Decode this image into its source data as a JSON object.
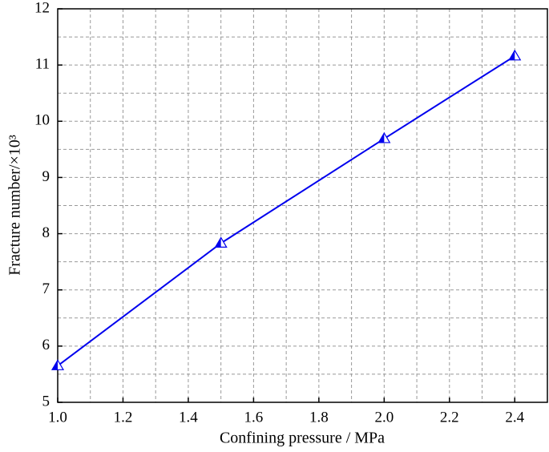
{
  "chart_data": {
    "type": "line",
    "x_label": "Confining pressure / MPa",
    "y_label": "Fracture number/×10³",
    "x": [
      1.0,
      1.5,
      2.0,
      2.4
    ],
    "series": [
      {
        "color": "#0000ee",
        "values": [
          5.65,
          7.83,
          9.69,
          11.16
        ]
      }
    ],
    "xlim": [
      1.0,
      2.5
    ],
    "ylim": [
      5,
      12
    ],
    "xticks": [
      {
        "value": 1.0,
        "label": "1.0"
      },
      {
        "value": 1.2,
        "label": "1.2"
      },
      {
        "value": 1.4,
        "label": "1.4"
      },
      {
        "value": 1.6,
        "label": "1.6"
      },
      {
        "value": 1.8,
        "label": "1.8"
      },
      {
        "value": 2.0,
        "label": "2.0"
      },
      {
        "value": 2.2,
        "label": "2.2"
      },
      {
        "value": 2.4,
        "label": "2.4"
      }
    ],
    "xminorticks": [
      1.1,
      1.3,
      1.5,
      1.7,
      1.9,
      2.1,
      2.3,
      2.5
    ],
    "yticks": [
      5,
      6,
      7,
      8,
      9,
      10,
      11,
      12
    ],
    "yminorticks": [
      5.5,
      6.5,
      7.5,
      8.5,
      9.5,
      10.5,
      11.5
    ],
    "grid": true
  }
}
